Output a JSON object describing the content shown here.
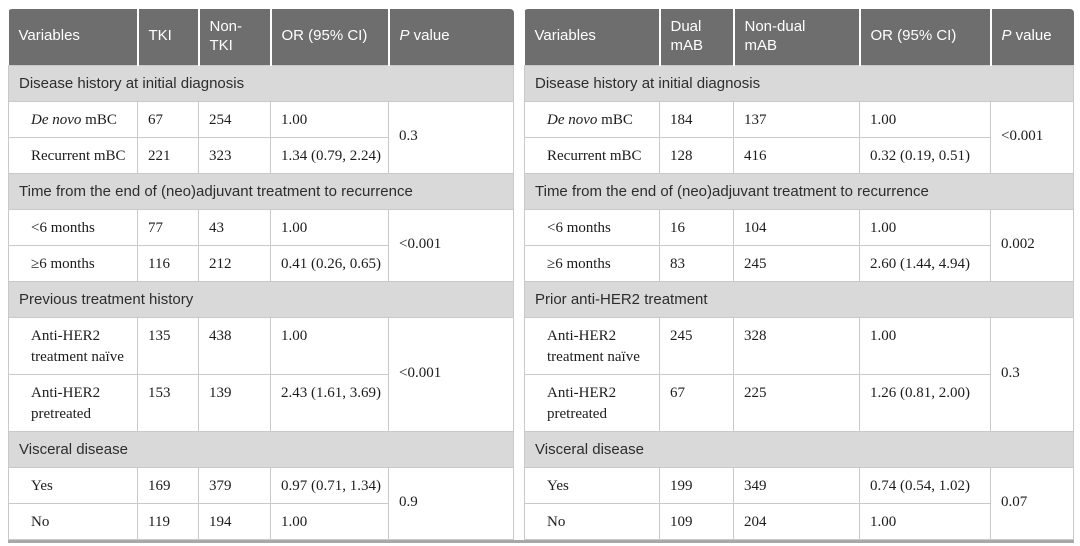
{
  "colors": {
    "header_bg": "#6e6e6e",
    "header_text": "#ffffff",
    "section_bg": "#d9d9d9",
    "section_text": "#2d2d2d",
    "data_text": "#1c1c1c",
    "cell_border": "#c9c9c9",
    "bottom_rule": "#a8a8a8",
    "row_bg": "#ffffff"
  },
  "tables": [
    {
      "name": "tki-vs-non-tki",
      "header": {
        "variables": "Variables",
        "group1": "TKI",
        "group2": "Non-TKI",
        "or": "OR (95% CI)",
        "p_italic": "P",
        "p_rest": " value"
      },
      "sections": [
        {
          "title": "Disease history at initial diagnosis",
          "p_value": "0.3",
          "rows": [
            {
              "label_italic": "De novo",
              "label": " mBC",
              "group1": "67",
              "group2": "254",
              "or": "1.00"
            },
            {
              "label": "Recurrent mBC",
              "group1": "221",
              "group2": "323",
              "or": "1.34 (0.79, 2.24)"
            }
          ]
        },
        {
          "title": "Time from the end of (neo)adjuvant treatment to recurrence",
          "p_value": "<0.001",
          "rows": [
            {
              "label": "<6 months",
              "group1": "77",
              "group2": "43",
              "or": "1.00"
            },
            {
              "label": "≥6 months",
              "group1": "116",
              "group2": "212",
              "or": "0.41 (0.26, 0.65)"
            }
          ]
        },
        {
          "title": "Previous treatment history",
          "p_value": "<0.001",
          "rows": [
            {
              "label": "Anti-HER2 treatment naïve",
              "group1": "135",
              "group2": "438",
              "or": "1.00"
            },
            {
              "label": "Anti-HER2 pretreated",
              "group1": "153",
              "group2": "139",
              "or": "2.43 (1.61, 3.69)"
            }
          ]
        },
        {
          "title": "Visceral disease",
          "p_value": "0.9",
          "rows": [
            {
              "label": "Yes",
              "group1": "169",
              "group2": "379",
              "or": "0.97 (0.71, 1.34)"
            },
            {
              "label": "No",
              "group1": "119",
              "group2": "194",
              "or": "1.00"
            }
          ]
        }
      ]
    },
    {
      "name": "dual-mab-vs-non-dual-mab",
      "header": {
        "variables": "Variables",
        "group1": "Dual mAB",
        "group2": "Non-dual mAB",
        "or": "OR (95% CI)",
        "p_italic": "P",
        "p_rest": " value"
      },
      "sections": [
        {
          "title": "Disease history at initial diagnosis",
          "p_value": "<0.001",
          "rows": [
            {
              "label_italic": "De novo",
              "label": " mBC",
              "group1": "184",
              "group2": "137",
              "or": "1.00"
            },
            {
              "label": "Recurrent mBC",
              "group1": "128",
              "group2": "416",
              "or": "0.32 (0.19, 0.51)"
            }
          ]
        },
        {
          "title": "Time from the end of (neo)adjuvant treatment to recurrence",
          "p_value": "0.002",
          "rows": [
            {
              "label": "<6 months",
              "group1": "16",
              "group2": "104",
              "or": "1.00"
            },
            {
              "label": "≥6 months",
              "group1": "83",
              "group2": "245",
              "or": "2.60 (1.44, 4.94)"
            }
          ]
        },
        {
          "title": "Prior anti-HER2 treatment",
          "p_value": "0.3",
          "rows": [
            {
              "label": "Anti-HER2 treatment naïve",
              "group1": "245",
              "group2": "328",
              "or": "1.00"
            },
            {
              "label": "Anti-HER2 pretreated",
              "group1": "67",
              "group2": "225",
              "or": "1.26 (0.81, 2.00)"
            }
          ]
        },
        {
          "title": "Visceral disease",
          "p_value": "0.07",
          "rows": [
            {
              "label": "Yes",
              "group1": "199",
              "group2": "349",
              "or": "0.74 (0.54, 1.02)"
            },
            {
              "label": "No",
              "group1": "109",
              "group2": "204",
              "or": "1.00"
            }
          ]
        }
      ]
    }
  ]
}
